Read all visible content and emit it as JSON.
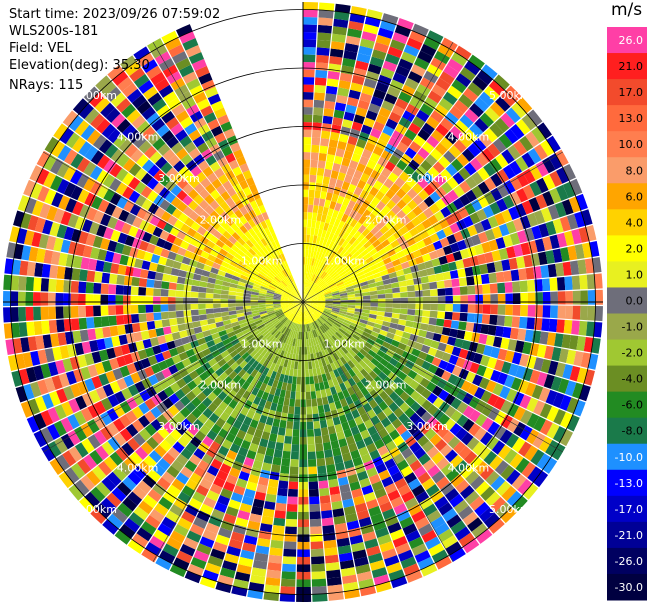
{
  "header": {
    "start_time": "Start time: 2023/09/26 07:59:02",
    "station": "WLS200s-181",
    "field": "Field: VEL",
    "elevation": "Elevation(deg): 35.30",
    "nrays": "NRays: 115"
  },
  "chart_data": {
    "type": "heatmap",
    "projection": "polar-ppi",
    "title": "",
    "range_rings_km": [
      1,
      2,
      3,
      4,
      5
    ],
    "ring_labels": [
      "1.00km",
      "2.00km",
      "3.00km",
      "4.00km",
      "5.00km"
    ],
    "grid": true,
    "colorbar": {
      "unit": "m/s",
      "position": "right",
      "levels": [
        {
          "label": "26.0",
          "color": "#ff3fa6"
        },
        {
          "label": "21.0",
          "color": "#ff1f1f"
        },
        {
          "label": "17.0",
          "color": "#f24b2c"
        },
        {
          "label": "13.0",
          "color": "#ff6a3d"
        },
        {
          "label": "10.0",
          "color": "#ff7e4f"
        },
        {
          "label": "8.0",
          "color": "#fa9c6a"
        },
        {
          "label": "6.0",
          "color": "#ffa500"
        },
        {
          "label": "4.0",
          "color": "#ffd200"
        },
        {
          "label": "2.0",
          "color": "#ffff00"
        },
        {
          "label": "1.0",
          "color": "#e8f020"
        },
        {
          "label": "0.0",
          "color": "#6e6e7a"
        },
        {
          "label": "-1.0",
          "color": "#9aa84a"
        },
        {
          "label": "-2.0",
          "color": "#a0c832"
        },
        {
          "label": "-4.0",
          "color": "#6b8e23"
        },
        {
          "label": "-6.0",
          "color": "#228b22"
        },
        {
          "label": "-8.0",
          "color": "#1a7a4a"
        },
        {
          "label": "-10.0",
          "color": "#1e90ff"
        },
        {
          "label": "-13.0",
          "color": "#0000ff"
        },
        {
          "label": "-17.0",
          "color": "#0000c8"
        },
        {
          "label": "-21.0",
          "color": "#000096"
        },
        {
          "label": "-26.0",
          "color": "#000060"
        },
        {
          "label": "-30.0",
          "color": "#000040"
        }
      ]
    },
    "gap_azimuth_deg": [
      337,
      360
    ]
  }
}
